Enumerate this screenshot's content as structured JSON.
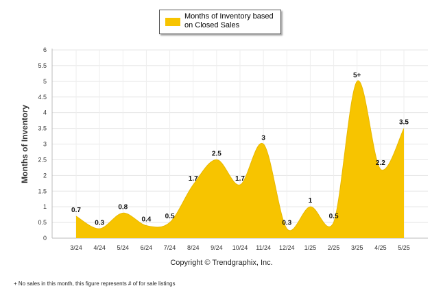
{
  "chart_data": {
    "type": "area",
    "categories": [
      "3/24",
      "4/24",
      "5/24",
      "6/24",
      "7/24",
      "8/24",
      "9/24",
      "10/24",
      "11/24",
      "12/24",
      "1/25",
      "2/25",
      "3/25",
      "4/25",
      "5/25"
    ],
    "series": [
      {
        "name": "Months of Inventory based on Closed Sales",
        "values": [
          0.7,
          0.3,
          0.8,
          0.4,
          0.5,
          1.7,
          2.5,
          1.7,
          3,
          0.3,
          1,
          0.5,
          5,
          2.2,
          3.5
        ],
        "labels": [
          "0.7",
          "0.3",
          "0.8",
          "0.4",
          "0.5",
          "1.7",
          "2.5",
          "1.7",
          "3",
          "0.3",
          "1",
          "0.5",
          "5+",
          "2.2",
          "3.5"
        ],
        "color": "#F7C400"
      }
    ],
    "ylabel": "Months of Inventory",
    "xlabel": "",
    "ylim": [
      0,
      6
    ],
    "yticks": [
      "0",
      "0.5",
      "1",
      "1.5",
      "2",
      "2.5",
      "3",
      "3.5",
      "4",
      "4.5",
      "5",
      "5.5",
      "6"
    ],
    "grid": true,
    "legend_position": "top-center"
  },
  "copyright": "Copyright © Trendgraphix, Inc.",
  "footnote": "+ No sales in this month, this figure represents # of for sale listings"
}
